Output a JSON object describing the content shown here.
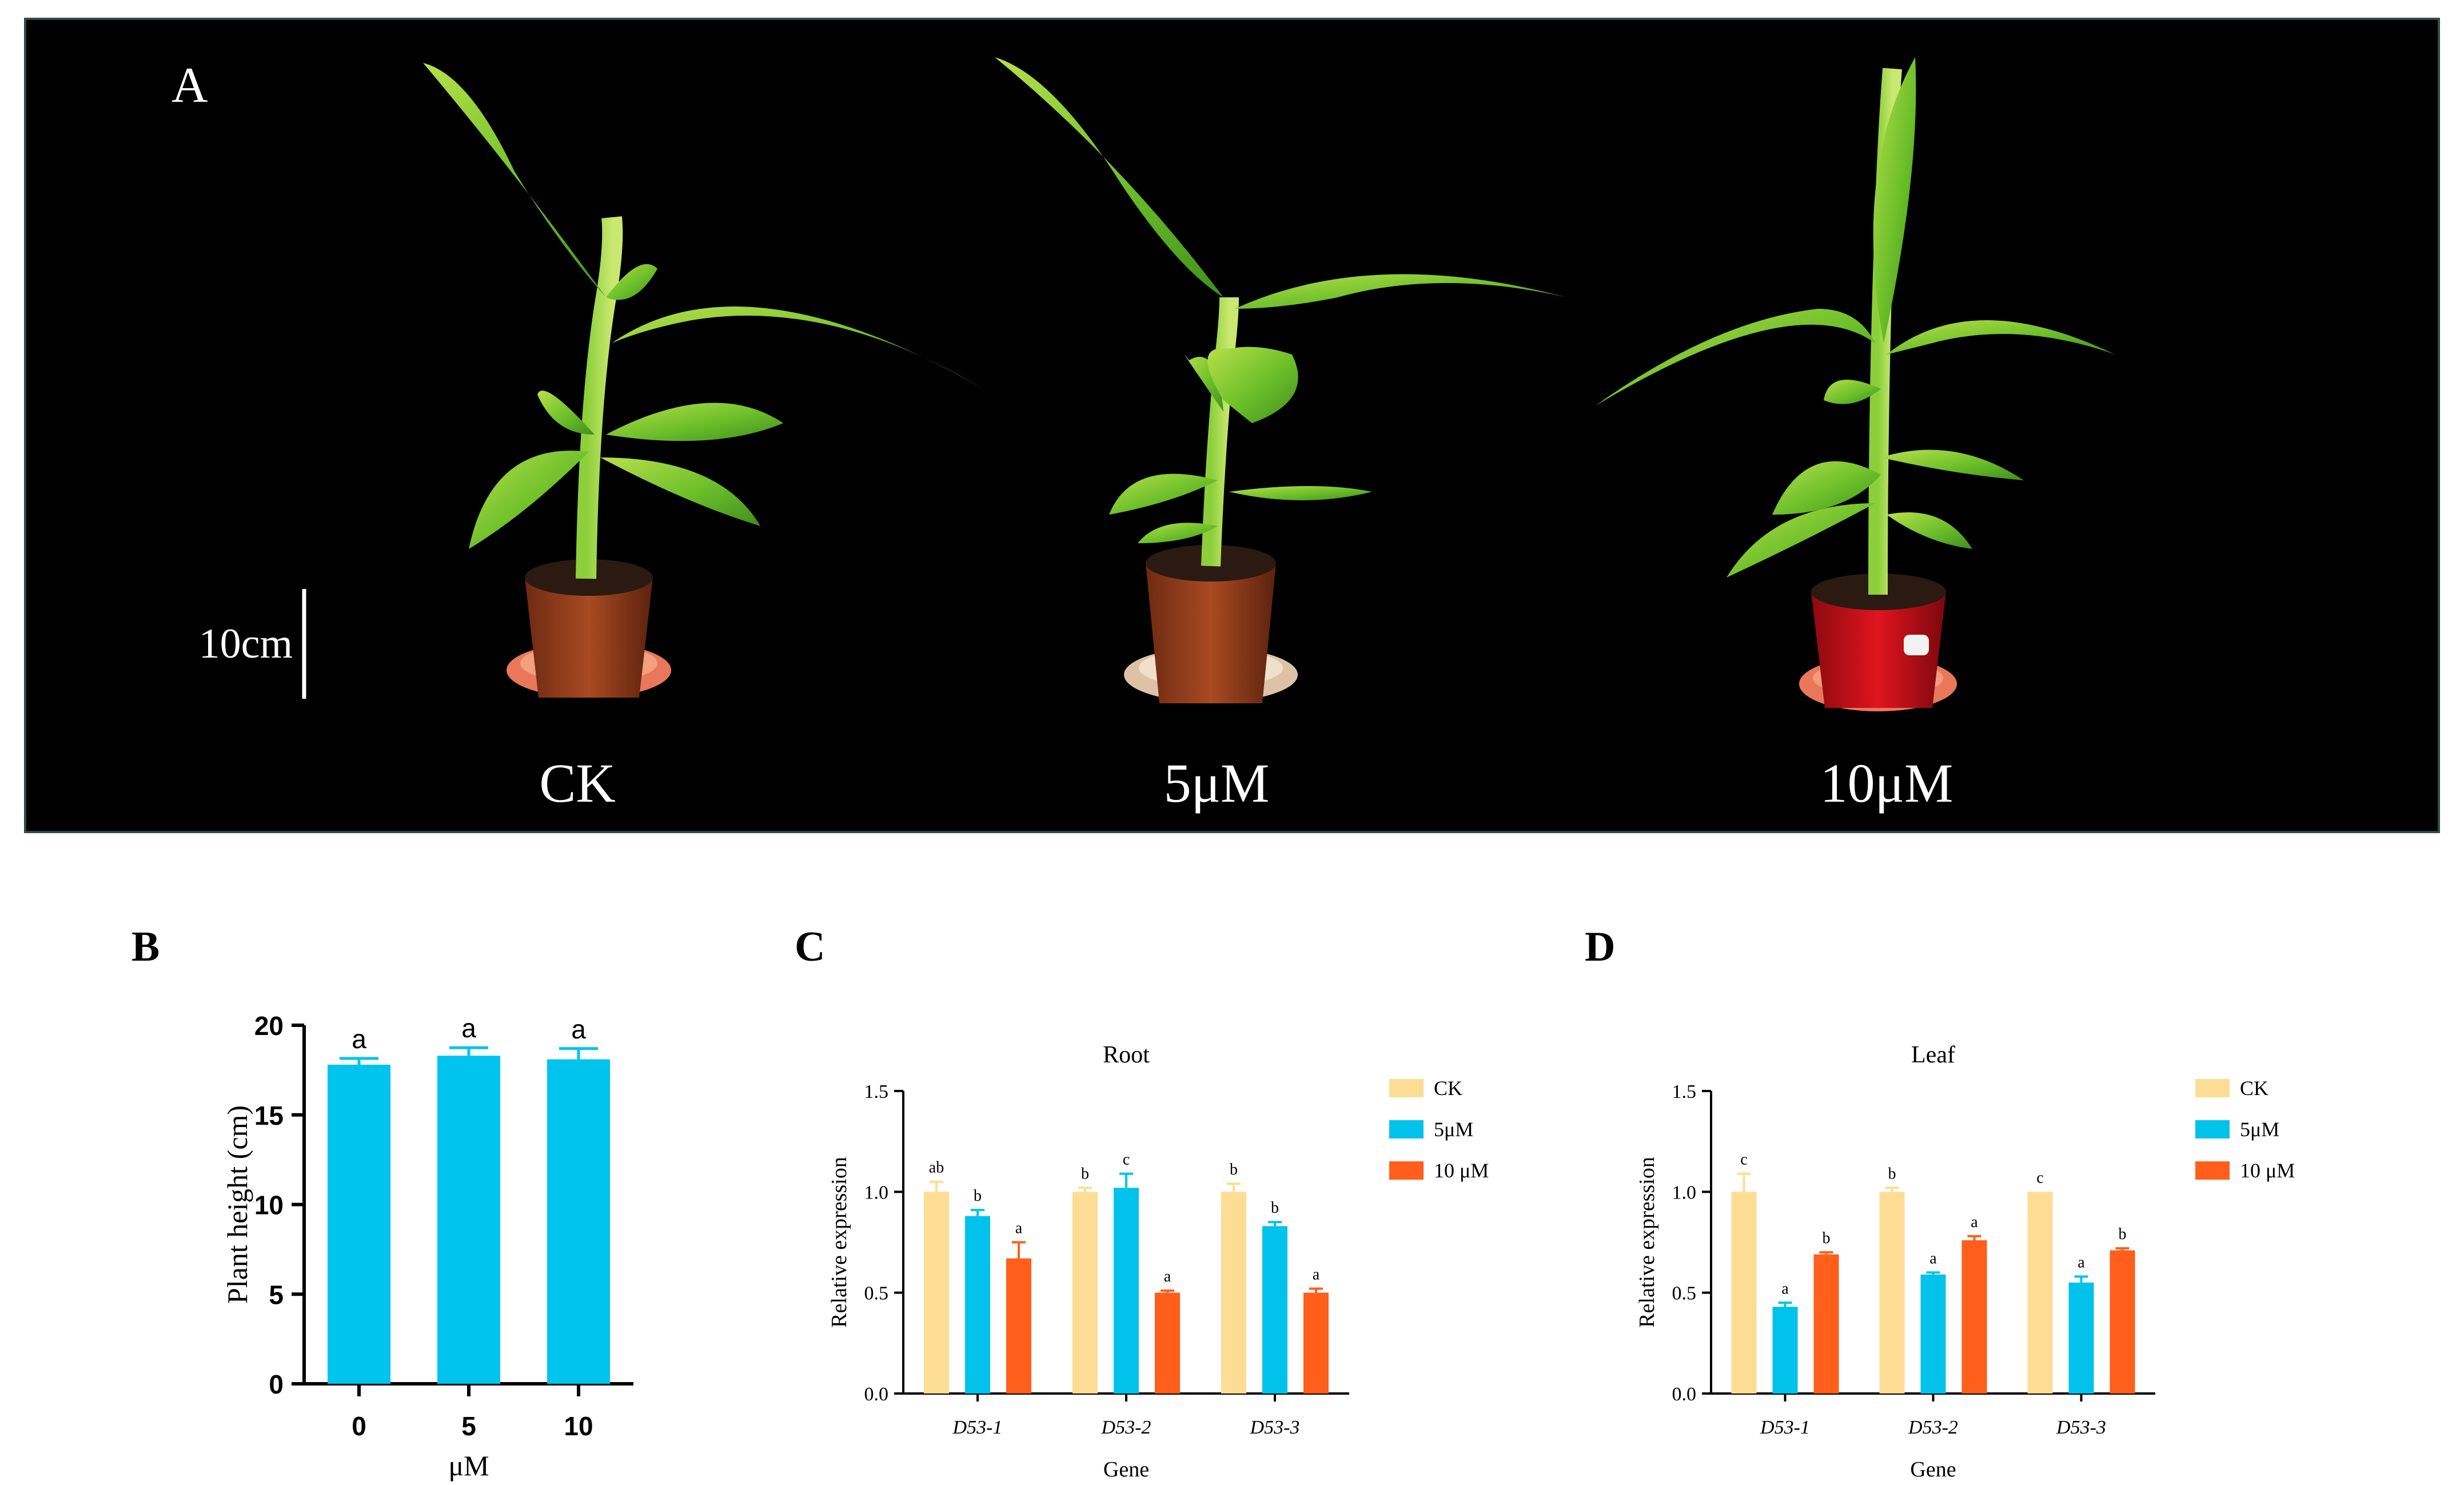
{
  "colors": {
    "ck": "#FDDD93",
    "um5": "#00C2EA",
    "um10": "#FF5E1B",
    "bar_b": "#00C3EE",
    "panel_bg": "#000000",
    "axis": "#000000"
  },
  "panel_a": {
    "label": "A",
    "scale_bar": "10cm",
    "plants": [
      {
        "name": "CK",
        "pot": "brown"
      },
      {
        "name": "5μM",
        "pot": "brown"
      },
      {
        "name": "10μM",
        "pot": "red"
      }
    ]
  },
  "panel_b": {
    "label": "B"
  },
  "panel_c": {
    "label": "C"
  },
  "panel_d": {
    "label": "D"
  },
  "chart_data": [
    {
      "id": "B",
      "type": "bar",
      "title": "",
      "xlabel": "μM",
      "ylabel": "Plant height (cm)",
      "ylim": [
        0,
        20
      ],
      "yticks": [
        "0",
        "5",
        "10",
        "15",
        "20"
      ],
      "categories": [
        "0",
        "5",
        "10"
      ],
      "values": [
        17.8,
        18.3,
        18.1
      ],
      "errors": [
        0.35,
        0.45,
        0.6
      ],
      "sig": [
        "a",
        "a",
        "a"
      ]
    },
    {
      "id": "C",
      "type": "bar",
      "title": "Root",
      "xlabel": "Gene",
      "ylabel": "Relative expression",
      "ylim": [
        0,
        1.5
      ],
      "yticks": [
        "0.0",
        "0.5",
        "1.0",
        "1.5"
      ],
      "categories": [
        "D53-1",
        "D53-2",
        "D53-3"
      ],
      "legend": [
        "CK",
        "5μM",
        "10 μM"
      ],
      "series": [
        {
          "name": "CK",
          "values": [
            1.0,
            1.0,
            1.0
          ],
          "errors": [
            0.05,
            0.02,
            0.04
          ],
          "sig": [
            "ab",
            "b",
            "b"
          ]
        },
        {
          "name": "5μM",
          "values": [
            0.88,
            1.02,
            0.83
          ],
          "errors": [
            0.03,
            0.07,
            0.02
          ],
          "sig": [
            "b",
            "c",
            "b"
          ]
        },
        {
          "name": "10μM",
          "values": [
            0.67,
            0.5,
            0.5
          ],
          "errors": [
            0.08,
            0.01,
            0.02
          ],
          "sig": [
            "a",
            "a",
            "a"
          ]
        }
      ]
    },
    {
      "id": "D",
      "type": "bar",
      "title": "Leaf",
      "xlabel": "Gene",
      "ylabel": "Relative expression",
      "ylim": [
        0,
        1.5
      ],
      "yticks": [
        "0.0",
        "0.5",
        "1.0",
        "1.5"
      ],
      "categories": [
        "D53-1",
        "D53-2",
        "D53-3"
      ],
      "legend": [
        "CK",
        "5μM",
        "10 μM"
      ],
      "series": [
        {
          "name": "CK",
          "values": [
            1.0,
            1.0,
            1.0
          ],
          "errors": [
            0.09,
            0.02,
            0.0
          ],
          "sig": [
            "c",
            "b",
            "c"
          ]
        },
        {
          "name": "5μM",
          "values": [
            0.43,
            0.59,
            0.55
          ],
          "errors": [
            0.02,
            0.01,
            0.03
          ],
          "sig": [
            "a",
            "a",
            "a"
          ]
        },
        {
          "name": "10μM",
          "values": [
            0.69,
            0.76,
            0.71
          ],
          "errors": [
            0.01,
            0.02,
            0.01
          ],
          "sig": [
            "b",
            "a",
            "b"
          ]
        }
      ]
    }
  ]
}
